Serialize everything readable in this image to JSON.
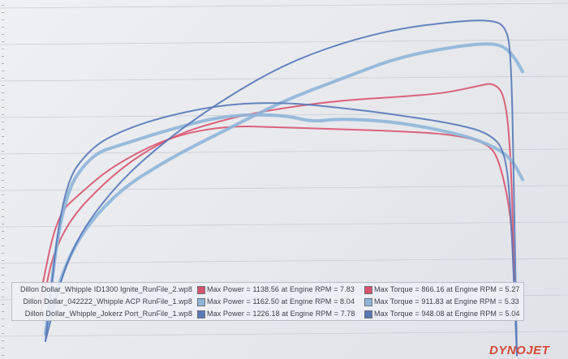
{
  "chart_data": {
    "type": "line",
    "title": "",
    "xlabel": "",
    "ylabel": "",
    "grid": true,
    "legend_placement": "bottom",
    "x_range": [
      0,
      1
    ],
    "y_range": [
      0,
      1
    ],
    "series": [
      {
        "name": "Dillon Dollar_Whipple ID1300 Ignite_RunFile_2.wp8 - Power",
        "color": "#d9536e",
        "points": [
          [
            0.07,
            0.11
          ],
          [
            0.1,
            0.35
          ],
          [
            0.2,
            0.52
          ],
          [
            0.3,
            0.62
          ],
          [
            0.4,
            0.67
          ],
          [
            0.5,
            0.7
          ],
          [
            0.6,
            0.72
          ],
          [
            0.7,
            0.73
          ],
          [
            0.78,
            0.74
          ],
          [
            0.84,
            0.76
          ],
          [
            0.87,
            0.77
          ],
          [
            0.89,
            0.73
          ],
          [
            0.9,
            0.55
          ],
          [
            0.905,
            0.22
          ]
        ]
      },
      {
        "name": "Dillon Dollar_Whipple ID1300 Ignite_RunFile_2.wp8 - Torque",
        "color": "#d9536e",
        "points": [
          [
            0.07,
            0.17
          ],
          [
            0.1,
            0.4
          ],
          [
            0.14,
            0.46
          ],
          [
            0.2,
            0.54
          ],
          [
            0.3,
            0.62
          ],
          [
            0.4,
            0.65
          ],
          [
            0.5,
            0.645
          ],
          [
            0.6,
            0.64
          ],
          [
            0.7,
            0.635
          ],
          [
            0.8,
            0.625
          ],
          [
            0.86,
            0.6
          ],
          [
            0.88,
            0.55
          ],
          [
            0.9,
            0.4
          ],
          [
            0.905,
            0.22
          ]
        ]
      },
      {
        "name": "Dillon Dollar_042222_Whipple ACP RunFile_1.wp8 - Power",
        "color": "#8fb6d9",
        "points": [
          [
            0.08,
            0.07
          ],
          [
            0.12,
            0.3
          ],
          [
            0.2,
            0.46
          ],
          [
            0.3,
            0.56
          ],
          [
            0.4,
            0.64
          ],
          [
            0.5,
            0.72
          ],
          [
            0.6,
            0.78
          ],
          [
            0.7,
            0.84
          ],
          [
            0.8,
            0.87
          ],
          [
            0.86,
            0.88
          ],
          [
            0.89,
            0.87
          ],
          [
            0.91,
            0.83
          ],
          [
            0.92,
            0.8
          ]
        ]
      },
      {
        "name": "Dillon Dollar_042222_Whipple ACP RunFile_1.wp8 - Torque",
        "color": "#8fb6d9",
        "points": [
          [
            0.08,
            0.07
          ],
          [
            0.11,
            0.45
          ],
          [
            0.16,
            0.57
          ],
          [
            0.22,
            0.6
          ],
          [
            0.3,
            0.64
          ],
          [
            0.4,
            0.68
          ],
          [
            0.5,
            0.68
          ],
          [
            0.55,
            0.66
          ],
          [
            0.6,
            0.67
          ],
          [
            0.7,
            0.66
          ],
          [
            0.8,
            0.63
          ],
          [
            0.86,
            0.6
          ],
          [
            0.9,
            0.56
          ],
          [
            0.92,
            0.5
          ]
        ]
      },
      {
        "name": "Dillon Dollar_Whipple_Jokerz Port_RunFile_1.wp8 - Power",
        "color": "#5878b8",
        "points": [
          [
            0.08,
            0.05
          ],
          [
            0.12,
            0.3
          ],
          [
            0.2,
            0.48
          ],
          [
            0.3,
            0.62
          ],
          [
            0.4,
            0.73
          ],
          [
            0.5,
            0.82
          ],
          [
            0.6,
            0.88
          ],
          [
            0.7,
            0.92
          ],
          [
            0.8,
            0.94
          ],
          [
            0.86,
            0.945
          ],
          [
            0.89,
            0.93
          ],
          [
            0.9,
            0.85
          ],
          [
            0.905,
            0.45
          ],
          [
            0.91,
            0.01
          ]
        ]
      },
      {
        "name": "Dillon Dollar_Whipple_Jokerz Port_RunFile_1.wp8 - Torque",
        "color": "#5878b8",
        "points": [
          [
            0.08,
            0.05
          ],
          [
            0.11,
            0.48
          ],
          [
            0.16,
            0.59
          ],
          [
            0.22,
            0.64
          ],
          [
            0.3,
            0.68
          ],
          [
            0.4,
            0.71
          ],
          [
            0.5,
            0.715
          ],
          [
            0.6,
            0.7
          ],
          [
            0.7,
            0.68
          ],
          [
            0.8,
            0.655
          ],
          [
            0.86,
            0.63
          ],
          [
            0.89,
            0.58
          ],
          [
            0.9,
            0.4
          ],
          [
            0.91,
            0.01
          ]
        ]
      }
    ]
  },
  "legend": {
    "rows": [
      {
        "file": "Dillon Dollar_Whipple ID1300 Ignite_RunFile_2.wp8",
        "color": "#d9536e",
        "power": "Max Power = 1138.56 at Engine RPM = 7.83",
        "torque": "Max Torque = 866.16 at Engine RPM = 5.27"
      },
      {
        "file": "Dillon Dollar_042222_Whipple ACP RunFile_1.wp8",
        "color": "#8fb6d9",
        "power": "Max Power = 1162.50 at Engine RPM = 8.04",
        "torque": "Max Torque = 911.83 at Engine RPM = 5.33"
      },
      {
        "file": "Dillon Dollar_Whipple_Jokerz Port_RunFile_1.wp8",
        "color": "#5878b8",
        "power": "Max Power = 1226.18 at Engine RPM = 7.78",
        "torque": "Max Torque = 948.08 at Engine RPM = 5.04"
      }
    ]
  },
  "logo": "DYNOJET"
}
